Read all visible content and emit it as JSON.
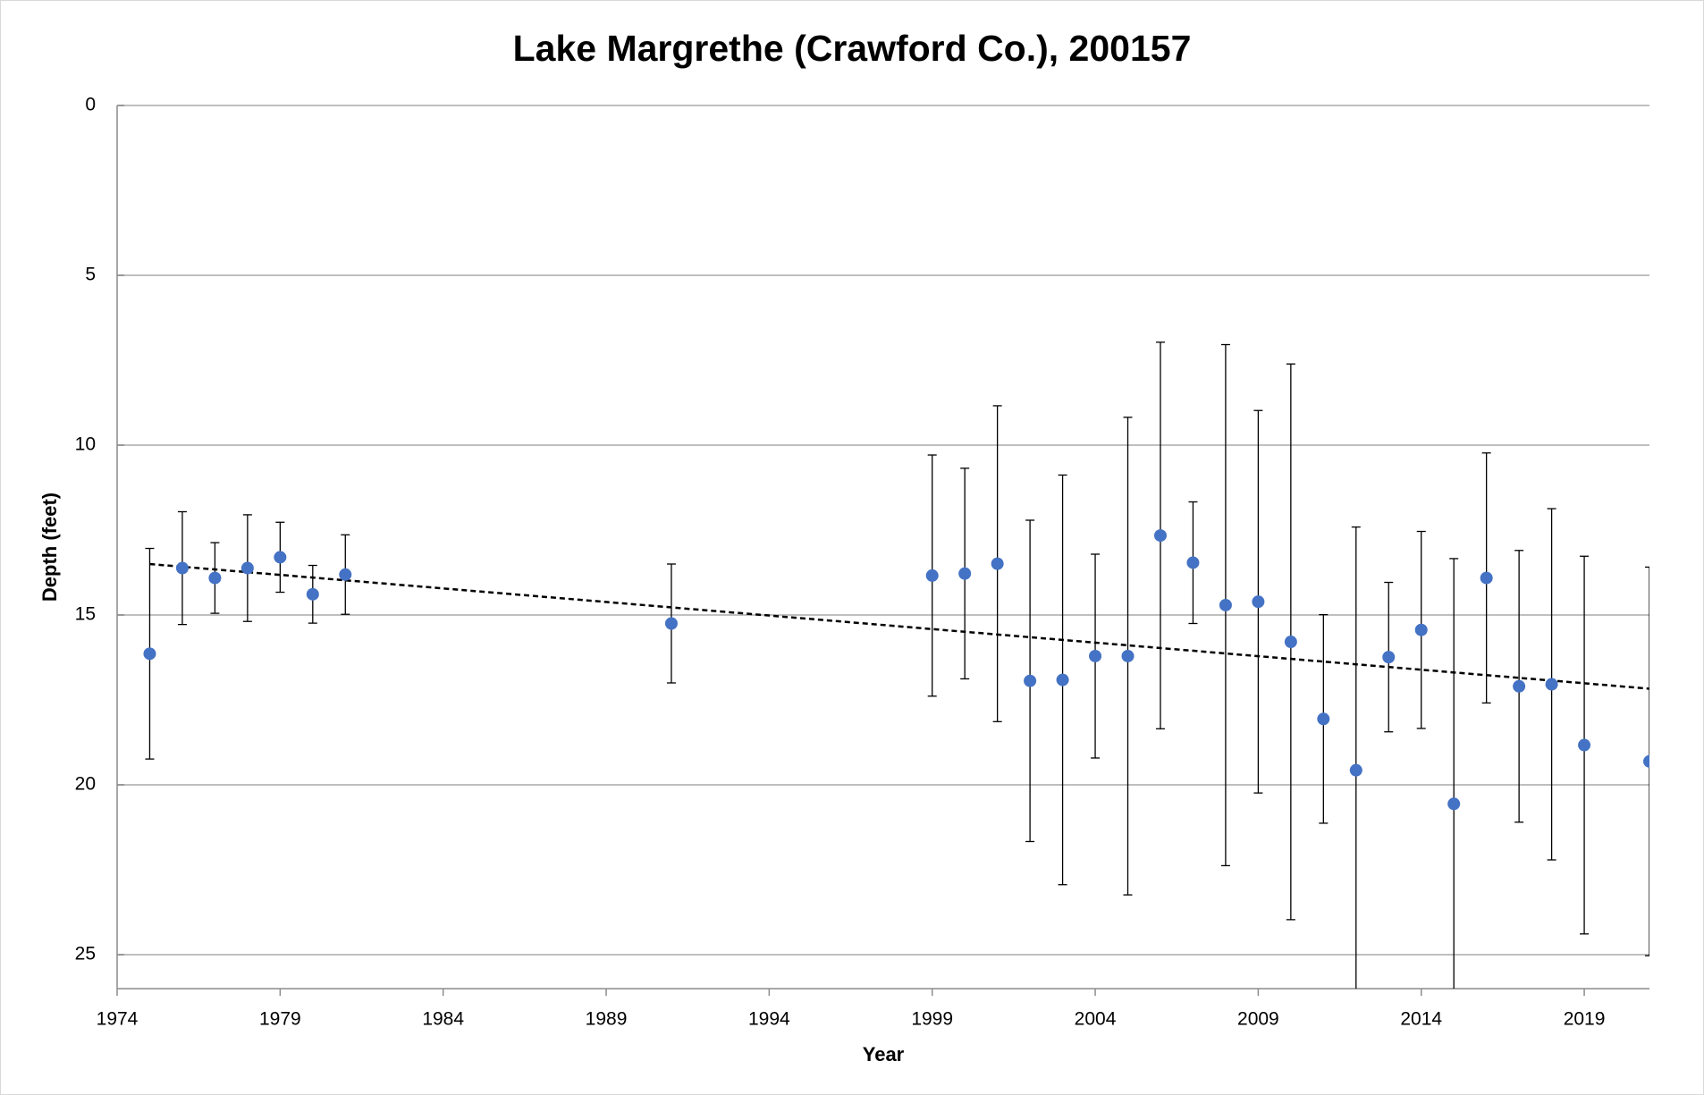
{
  "chart_data": {
    "type": "scatter",
    "title": "Lake Margrethe (Crawford Co.), 200157",
    "x_label": "Year",
    "y_label": "Depth (feet)",
    "xlim": [
      1974,
      2021
    ],
    "xticks": [
      1974,
      1979,
      1984,
      1989,
      1994,
      1999,
      2004,
      2009,
      2014,
      2019
    ],
    "ylim": [
      0,
      26
    ],
    "yticks": [
      0,
      5,
      10,
      15,
      20,
      25
    ],
    "y_reversed": true,
    "grid": true,
    "series": [
      {
        "color": "#4472c4",
        "x": [
          1975,
          1976,
          1977,
          1978,
          1979,
          1980,
          1981,
          1991,
          1999,
          2000,
          2001,
          2002,
          2003,
          2004,
          2005,
          2006,
          2007,
          2008,
          2009,
          2010,
          2011,
          2012,
          2013,
          2014,
          2015,
          2016,
          2017,
          2018,
          2019,
          2021
        ],
        "values": [
          16.14,
          13.62,
          13.91,
          13.62,
          13.3,
          14.39,
          13.81,
          15.25,
          13.84,
          13.78,
          13.49,
          16.94,
          16.91,
          16.21,
          16.21,
          12.66,
          13.46,
          14.71,
          14.61,
          15.79,
          18.06,
          19.57,
          16.24,
          15.44,
          20.56,
          13.91,
          17.1,
          17.04,
          18.83,
          19.31
        ],
        "errors": [
          3.1,
          1.66,
          1.04,
          1.57,
          1.03,
          0.85,
          1.17,
          1.75,
          3.55,
          3.1,
          4.65,
          4.73,
          6.03,
          3.0,
          7.03,
          5.69,
          1.79,
          7.67,
          5.63,
          8.18,
          3.07,
          7.16,
          2.2,
          2.9,
          7.22,
          3.68,
          4.0,
          5.17,
          5.56,
          5.72
        ]
      }
    ],
    "trendline": {
      "x": [
        1975,
        2021
      ],
      "y": [
        13.5,
        17.17
      ],
      "color": "#000000"
    }
  }
}
